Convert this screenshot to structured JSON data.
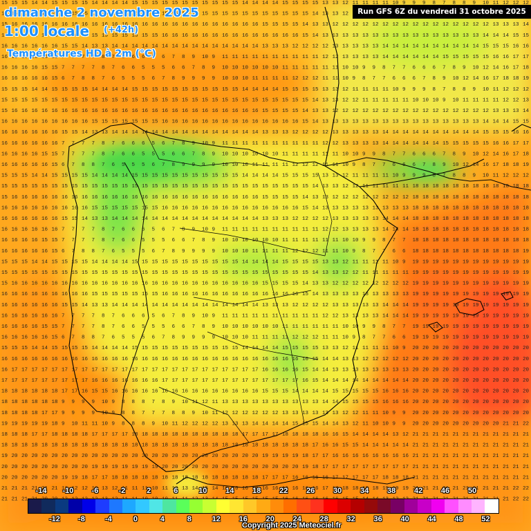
{
  "header": {
    "date": "dimanche 2 novembre 2025",
    "time": "1:00 locale",
    "step": "(+42h)",
    "parameter": "Températures HD à 2m (°C)",
    "run": "Run GFS 6Z du vendredi 31 octobre 2025"
  },
  "legend": {
    "colors": [
      "#1a1a4a",
      "#102a5c",
      "#0a3a80",
      "#0000a8",
      "#0000e8",
      "#1e3cff",
      "#1e78ff",
      "#1ea8ff",
      "#32c8ff",
      "#50e6e6",
      "#4ee6a0",
      "#5aff5a",
      "#96ff32",
      "#c8ff32",
      "#ffff32",
      "#ffe632",
      "#ffc828",
      "#ffaa14",
      "#ff8c0a",
      "#ff6e00",
      "#ff5014",
      "#ff321e",
      "#ff0000",
      "#dc0000",
      "#b40000",
      "#960a0a",
      "#7a0a28",
      "#780064",
      "#a0009b",
      "#c800c8",
      "#f000f0",
      "#ff50ff",
      "#ff8cff",
      "#ffb4ff",
      "#ffffff"
    ],
    "top_labels": [
      "-14",
      "-10",
      "-6",
      "-2",
      "2",
      "6",
      "10",
      "14",
      "18",
      "22",
      "26",
      "30",
      "34",
      "38",
      "42",
      "46",
      "50"
    ],
    "bottom_labels": [
      "-12",
      "-8",
      "-4",
      "0",
      "4",
      "8",
      "12",
      "16",
      "20",
      "24",
      "28",
      "32",
      "36",
      "40",
      "44",
      "48",
      "52"
    ]
  },
  "copyright": "Copyright 2025 Meteociel.fr",
  "map": {
    "region": "Péninsule ibérique",
    "grid_values_note_rows": [
      [
        15,
        15,
        15,
        14,
        14,
        15,
        15,
        15,
        15,
        14,
        14,
        14,
        14,
        15,
        15,
        15,
        15,
        15,
        15,
        15,
        15,
        15,
        15,
        15,
        14,
        14,
        14,
        14,
        15,
        15,
        15,
        15,
        13,
        13,
        12,
        11,
        11,
        11,
        11,
        10,
        9,
        9,
        9,
        8,
        7,
        8,
        8,
        9,
        10,
        11,
        12,
        12,
        12
      ],
      [
        15,
        15,
        15,
        15,
        15,
        15,
        15,
        15,
        15,
        15,
        15,
        15,
        15,
        15,
        15,
        15,
        15,
        15,
        15,
        15,
        15,
        15,
        15,
        15,
        15,
        15,
        15,
        15,
        15,
        15,
        15,
        14,
        13,
        13,
        12,
        12,
        11,
        11,
        11,
        11,
        11,
        10,
        10,
        10,
        9,
        10,
        11,
        11,
        11,
        11,
        12,
        12,
        13
      ],
      [
        15,
        16,
        16,
        16,
        16,
        16,
        16,
        16,
        16,
        16,
        16,
        16,
        16,
        16,
        16,
        16,
        16,
        16,
        16,
        16,
        16,
        16,
        16,
        16,
        16,
        16,
        15,
        15,
        15,
        15,
        14,
        13,
        13,
        12,
        12,
        12,
        12,
        12,
        12,
        12,
        12,
        12,
        12,
        12,
        12,
        12,
        12,
        12,
        12,
        13,
        13,
        13,
        14
      ],
      [
        16,
        16,
        16,
        16,
        16,
        16,
        16,
        16,
        16,
        15,
        15,
        15,
        15,
        15,
        15,
        15,
        16,
        16,
        16,
        16,
        16,
        16,
        16,
        16,
        16,
        16,
        16,
        16,
        16,
        16,
        15,
        14,
        13,
        13,
        13,
        13,
        13,
        13,
        13,
        13,
        13,
        13,
        13,
        13,
        13,
        13,
        13,
        13,
        14,
        14,
        14,
        15,
        15
      ],
      [
        16,
        16,
        16,
        16,
        16,
        16,
        15,
        15,
        14,
        13,
        13,
        14,
        14,
        14,
        14,
        14,
        14,
        14,
        14,
        14,
        14,
        14,
        14,
        14,
        14,
        14,
        13,
        13,
        13,
        12,
        12,
        12,
        12,
        13,
        13,
        13,
        13,
        13,
        14,
        14,
        14,
        14,
        14,
        14,
        14,
        14,
        14,
        14,
        15,
        15,
        15,
        16,
        16
      ],
      [
        16,
        16,
        16,
        16,
        16,
        16,
        7,
        7,
        7,
        7,
        8,
        7,
        6,
        6,
        6,
        5,
        6,
        7,
        8,
        9,
        10,
        9,
        11,
        11,
        11,
        11,
        11,
        11,
        11,
        11,
        11,
        11,
        12,
        12,
        13,
        13,
        13,
        13,
        14,
        14,
        14,
        14,
        14,
        14,
        15,
        15,
        15,
        15,
        15,
        16,
        16,
        17,
        17
      ],
      [
        16,
        16,
        16,
        16,
        15,
        15,
        7,
        7,
        7,
        7,
        8,
        7,
        6,
        6,
        5,
        5,
        5,
        6,
        6,
        7,
        8,
        9,
        10,
        10,
        10,
        10,
        10,
        10,
        11,
        11,
        11,
        11,
        11,
        11,
        10,
        10,
        9,
        9,
        8,
        7,
        7,
        6,
        6,
        6,
        7,
        8,
        9,
        10,
        12,
        14,
        16,
        17,
        18
      ],
      [
        16,
        16,
        16,
        16,
        16,
        15,
        6,
        7,
        8,
        8,
        7,
        6,
        5,
        5,
        5,
        6,
        7,
        8,
        9,
        9,
        9,
        9,
        10,
        10,
        10,
        11,
        11,
        11,
        11,
        12,
        12,
        12,
        11,
        11,
        10,
        9,
        8,
        7,
        7,
        6,
        6,
        6,
        7,
        8,
        9,
        10,
        12,
        14,
        16,
        17,
        18,
        18,
        19
      ]
    ]
  }
}
